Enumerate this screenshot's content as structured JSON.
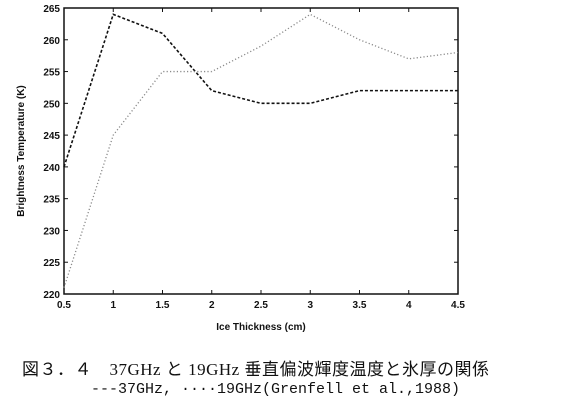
{
  "chart_data": {
    "type": "line",
    "xlabel": "Ice Thickness (cm)",
    "ylabel": "Brightness Temperature (K)",
    "xlim": [
      0.5,
      4.5
    ],
    "ylim": [
      220,
      265
    ],
    "xticks": [
      "0.5",
      "1",
      "1.5",
      "2",
      "2.5",
      "3",
      "3.5",
      "4",
      "4.5"
    ],
    "yticks": [
      "220",
      "225",
      "230",
      "235",
      "240",
      "245",
      "250",
      "255",
      "260",
      "265"
    ],
    "grid": false,
    "x": [
      0.5,
      1,
      1.5,
      2,
      2.5,
      3,
      3.5,
      4,
      4.5
    ],
    "series": [
      {
        "values": [
          240,
          264,
          261,
          252,
          250,
          250,
          252,
          252,
          252
        ],
        "style": "dashed",
        "color": "#111111"
      },
      {
        "values": [
          221,
          245,
          255,
          255,
          259,
          264,
          260,
          257,
          258
        ],
        "style": "dotted",
        "color": "#8a8a8a"
      }
    ]
  },
  "caption": {
    "line1": "図３．４　37GHz と 19GHz 垂直偏波輝度温度と氷厚の関係",
    "line2": "---37GHz, ····19GHz(Grenfell et al.,1988)"
  }
}
